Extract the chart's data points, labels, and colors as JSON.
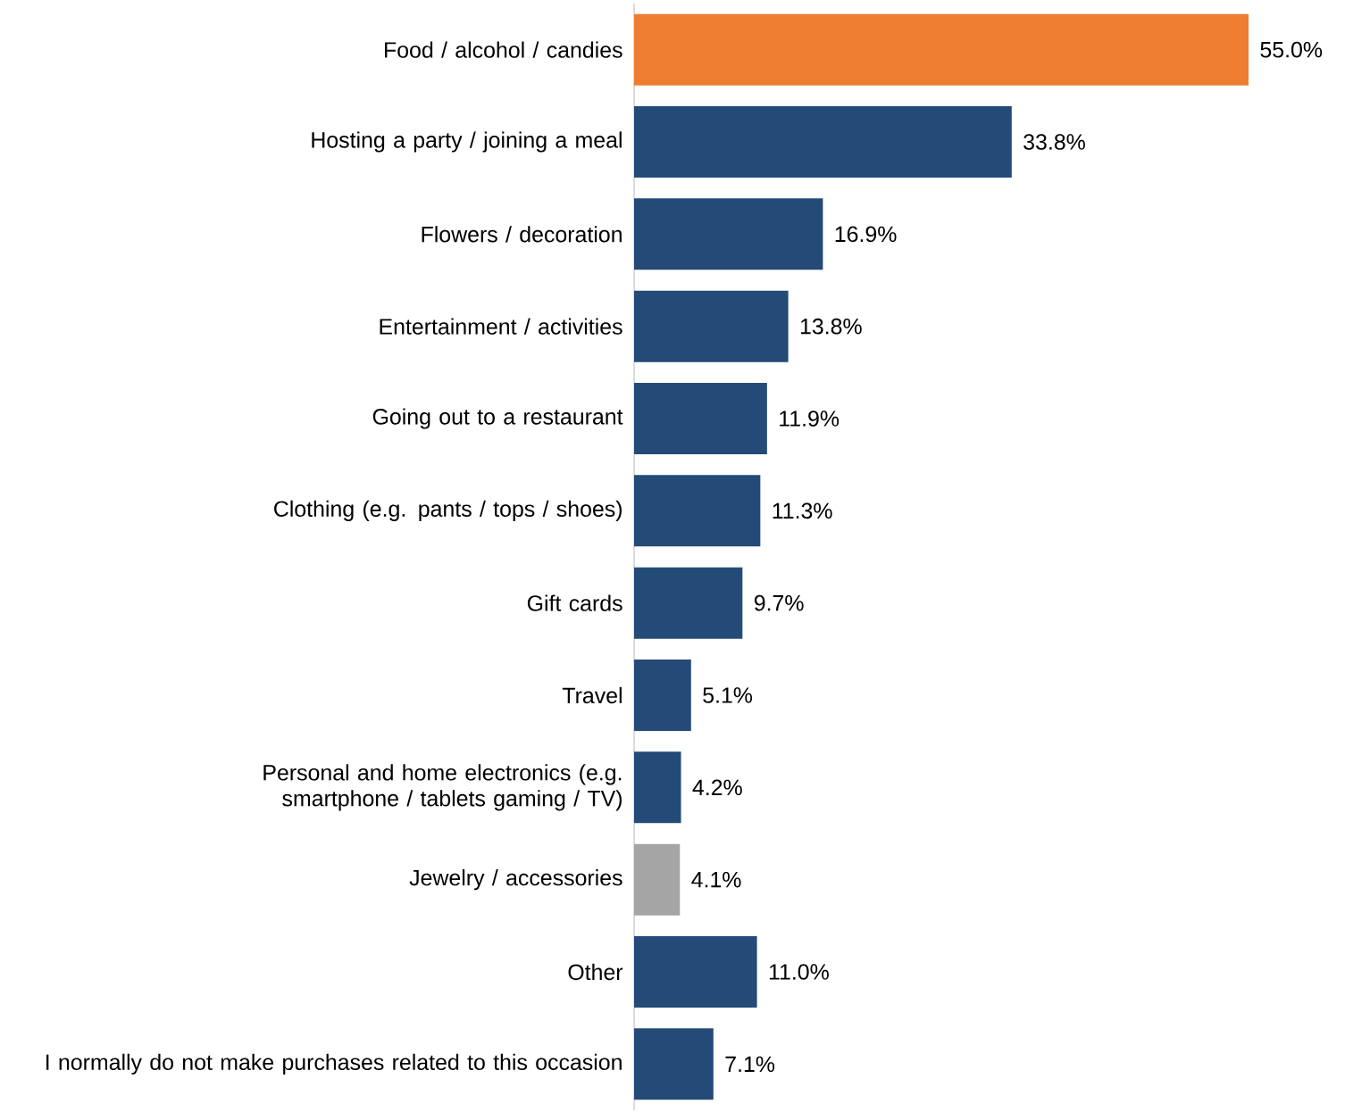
{
  "chart_data": {
    "type": "bar",
    "orientation": "horizontal",
    "categories": [
      "Food / alcohol / candies",
      "Hosting a party / joining a meal",
      "Flowers / decoration",
      "Entertainment / activities",
      "Going out to a restaurant",
      "Clothing (e.g. pants / tops / shoes)",
      "Gift cards",
      "Travel",
      "Personal and home electronics (e.g. smartphone / tablets gaming / TV)",
      "Jewelry / accessories",
      "Other",
      "I normally do not make purchases related to this occasion"
    ],
    "values": [
      55.0,
      33.8,
      16.9,
      13.8,
      11.9,
      11.3,
      9.7,
      5.1,
      4.2,
      4.1,
      11.0,
      7.1
    ],
    "value_labels": [
      "55.0%",
      "33.8%",
      "16.9%",
      "13.8%",
      "11.9%",
      "11.3%",
      "9.7%",
      "5.1%",
      "4.2%",
      "4.1%",
      "11.0%",
      "7.1%"
    ],
    "colors": [
      "#ed7d31",
      "#244a78",
      "#244a78",
      "#244a78",
      "#244a78",
      "#244a78",
      "#244a78",
      "#244a78",
      "#244a78",
      "#a5a5a5",
      "#244a78",
      "#244a78"
    ]
  }
}
